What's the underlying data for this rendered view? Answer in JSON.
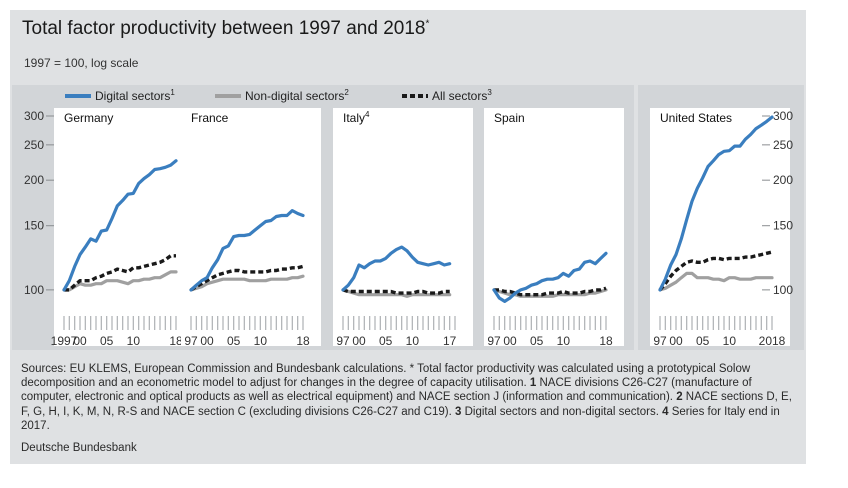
{
  "title": "Total factor productivity between 1997 and 2018",
  "title_mark": "*",
  "subtitle": "1997 = 100, log scale",
  "notes": {
    "sources_lead": "Sources: EU KLEMS, European Commission and Bundesbank calculations. * Total factor productivity was calculated using a prototypical Solow decomposition and an econometric model to adjust for changes in the degree of capacity utilisation.",
    "n1": "1",
    "t1": "NACE divisions C26-C27 (manufacture of computer, electronic and optical products as well as electrical equipment) and NACE section J (information and communication).",
    "n2": "2",
    "t2": "NACE sections D, E, F, G, H, I, K, M, N, R-S and NACE section C (excluding divisions C26-C27 and C19).",
    "n3": "3",
    "t3": "Digital sectors and non-digital sectors.",
    "n4": "4",
    "t4": "Series for Italy end in 2017."
  },
  "source": "Deutsche Bundesbank",
  "colors": {
    "digital": "#3a7ebf",
    "nondigital": "#a0a0a0",
    "all": "#1a1a1a",
    "background": "#dfe1e3",
    "panel": "#ffffff"
  },
  "chart_data": {
    "type": "line",
    "scale": "log",
    "ylim": [
      95,
      300
    ],
    "yticks": [
      100,
      150,
      200,
      250,
      300
    ],
    "legend": [
      {
        "key": "digital",
        "label": "Digital sectors",
        "note": "1"
      },
      {
        "key": "nondigital",
        "label": "Non-digital sectors",
        "note": "2"
      },
      {
        "key": "all",
        "label": "All sectors",
        "note": "3"
      }
    ],
    "panels": [
      {
        "name": "Germany",
        "note": "",
        "xticks": [
          "1997",
          "00",
          "05",
          "10",
          "18"
        ],
        "x": [
          1997,
          1998,
          1999,
          2000,
          2001,
          2002,
          2003,
          2004,
          2005,
          2006,
          2007,
          2008,
          2009,
          2010,
          2011,
          2012,
          2013,
          2014,
          2015,
          2016,
          2017,
          2018
        ],
        "series": {
          "digital": [
            100,
            106,
            116,
            125,
            131,
            138,
            136,
            145,
            146,
            157,
            170,
            176,
            183,
            184,
            196,
            202,
            207,
            214,
            215,
            217,
            220,
            226
          ],
          "nondigital": [
            100,
            100,
            102,
            104,
            103,
            103,
            104,
            104,
            106,
            106,
            106,
            105,
            104,
            106,
            106,
            107,
            107,
            108,
            108,
            110,
            112,
            112
          ],
          "all": [
            100,
            100,
            103,
            106,
            106,
            106,
            108,
            109,
            111,
            112,
            114,
            113,
            112,
            115,
            115,
            116,
            117,
            118,
            119,
            121,
            124,
            124
          ]
        }
      },
      {
        "name": "France",
        "note": "",
        "xticks": [
          "97",
          "00",
          "05",
          "10",
          "18"
        ],
        "x": [
          1997,
          1998,
          1999,
          2000,
          2001,
          2002,
          2003,
          2004,
          2005,
          2006,
          2007,
          2008,
          2009,
          2010,
          2011,
          2012,
          2013,
          2014,
          2015,
          2016,
          2017,
          2018
        ],
        "series": {
          "digital": [
            100,
            103,
            106,
            108,
            115,
            121,
            130,
            132,
            140,
            141,
            141,
            142,
            146,
            150,
            154,
            155,
            159,
            160,
            160,
            165,
            162,
            160
          ],
          "nondigital": [
            100,
            101,
            102,
            104,
            105,
            106,
            107,
            107,
            107,
            107,
            107,
            106,
            106,
            106,
            106,
            107,
            107,
            107,
            107,
            108,
            108,
            109
          ],
          "all": [
            100,
            102,
            104,
            106,
            108,
            110,
            111,
            112,
            113,
            113,
            112,
            112,
            112,
            112,
            112,
            113,
            113,
            114,
            114,
            115,
            115,
            116
          ]
        }
      },
      {
        "name": "Italy",
        "note": "4",
        "xticks": [
          "97",
          "00",
          "05",
          "10",
          "17"
        ],
        "x": [
          1997,
          1998,
          1999,
          2000,
          2001,
          2002,
          2003,
          2004,
          2005,
          2006,
          2007,
          2008,
          2009,
          2010,
          2011,
          2012,
          2013,
          2014,
          2015,
          2016,
          2017
        ],
        "series": {
          "digital": [
            100,
            103,
            108,
            117,
            115,
            118,
            120,
            120,
            122,
            126,
            129,
            131,
            128,
            123,
            119,
            118,
            117,
            118,
            119,
            117,
            118
          ],
          "nondigital": [
            100,
            99,
            98,
            97,
            97,
            97,
            97,
            97,
            97,
            97,
            97,
            97,
            96,
            97,
            97,
            97,
            97,
            97,
            97,
            97,
            97
          ],
          "all": [
            100,
            99,
            99,
            99,
            99,
            99,
            99,
            99,
            99,
            99,
            98,
            98,
            98,
            98,
            99,
            99,
            98,
            98,
            98,
            99,
            99
          ]
        }
      },
      {
        "name": "Spain",
        "note": "",
        "xticks": [
          "97",
          "00",
          "05",
          "10",
          "18"
        ],
        "x": [
          1997,
          1998,
          1999,
          2000,
          2001,
          2002,
          2003,
          2004,
          2005,
          2006,
          2007,
          2008,
          2009,
          2010,
          2011,
          2012,
          2013,
          2014,
          2015,
          2016,
          2017,
          2018
        ],
        "series": {
          "digital": [
            100,
            95,
            93,
            95,
            98,
            100,
            101,
            103,
            104,
            106,
            107,
            107,
            108,
            111,
            109,
            113,
            114,
            119,
            120,
            118,
            122,
            126
          ],
          "nondigital": [
            100,
            99,
            98,
            97,
            97,
            96,
            96,
            96,
            96,
            96,
            96,
            96,
            97,
            97,
            97,
            97,
            97,
            97,
            98,
            98,
            99,
            100
          ],
          "all": [
            100,
            100,
            99,
            99,
            98,
            97,
            97,
            97,
            97,
            97,
            98,
            98,
            98,
            99,
            98,
            98,
            98,
            99,
            99,
            100,
            100,
            101
          ]
        }
      },
      {
        "name": "United States",
        "note": "",
        "xticks": [
          "97",
          "00",
          "05",
          "10",
          "2018"
        ],
        "x": [
          1997,
          1998,
          1999,
          2000,
          2001,
          2002,
          2003,
          2004,
          2005,
          2006,
          2007,
          2008,
          2009,
          2010,
          2011,
          2012,
          2013,
          2014,
          2015,
          2016,
          2017,
          2018
        ],
        "series": {
          "digital": [
            100,
            107,
            117,
            125,
            138,
            156,
            175,
            190,
            203,
            218,
            226,
            235,
            240,
            241,
            248,
            248,
            259,
            267,
            277,
            283,
            290,
            298
          ],
          "nondigital": [
            100,
            101,
            103,
            105,
            108,
            111,
            111,
            108,
            108,
            108,
            107,
            107,
            106,
            108,
            108,
            107,
            107,
            107,
            108,
            108,
            108,
            108
          ],
          "all": [
            100,
            104,
            109,
            113,
            116,
            119,
            120,
            119,
            119,
            121,
            122,
            122,
            121,
            122,
            122,
            122,
            123,
            123,
            124,
            125,
            126,
            127
          ]
        }
      }
    ]
  }
}
